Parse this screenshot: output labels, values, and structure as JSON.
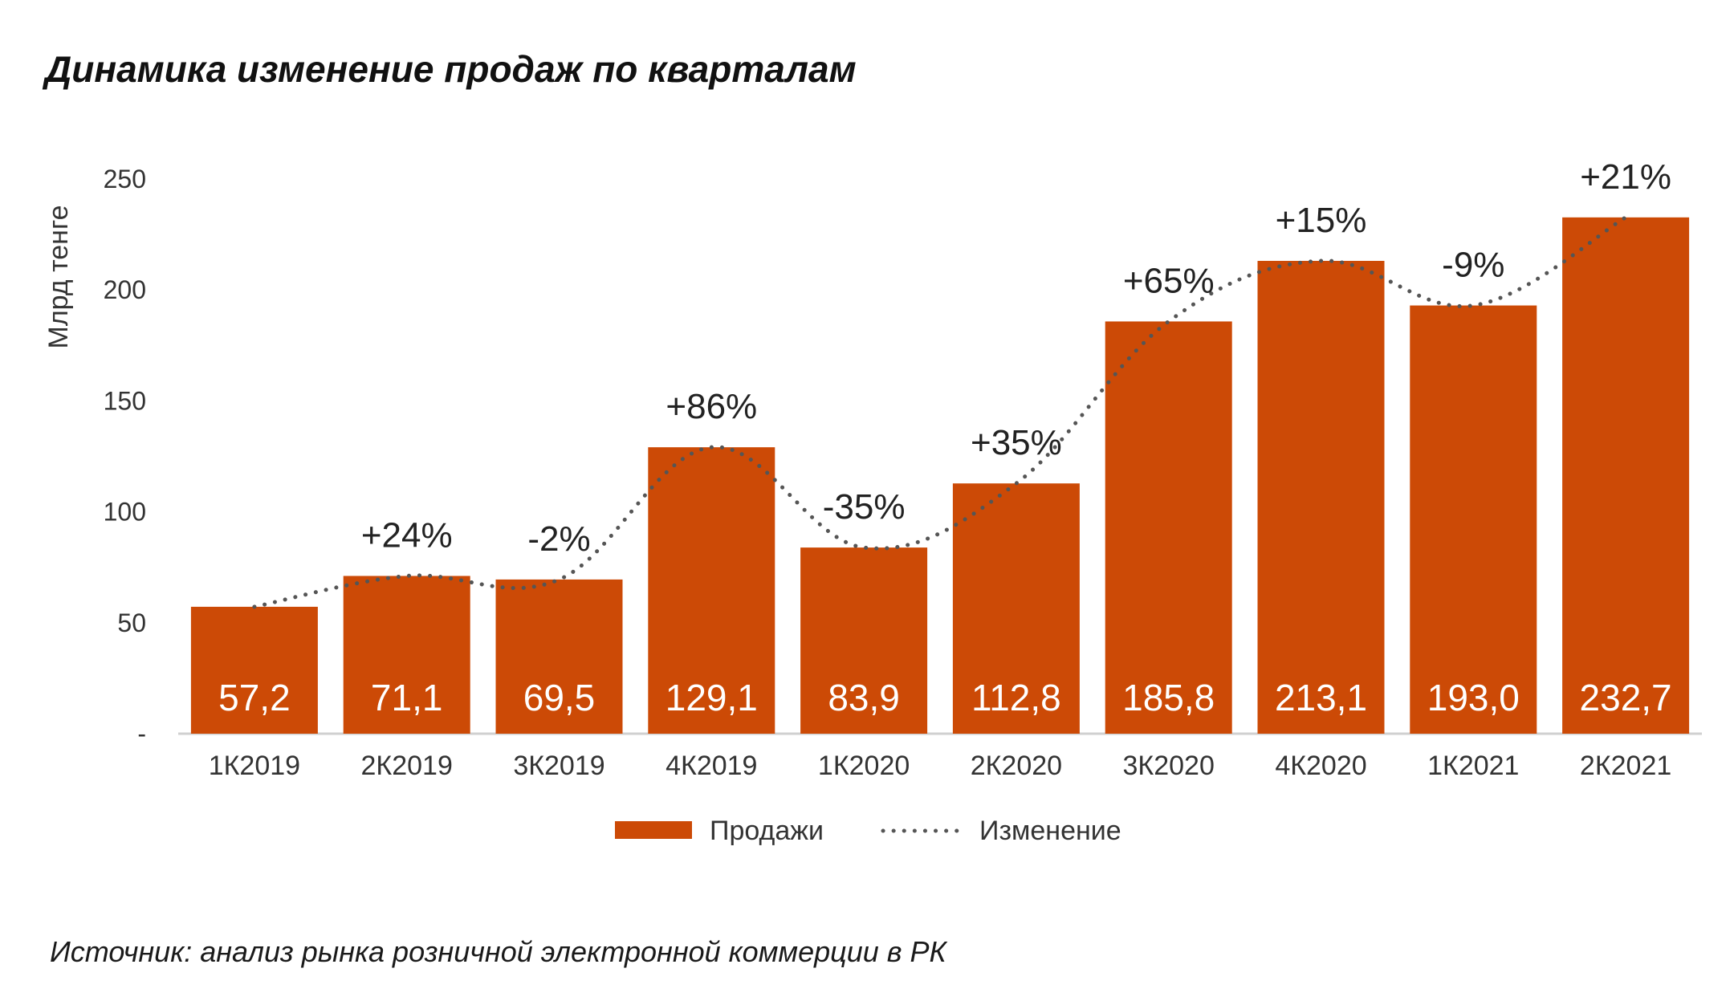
{
  "colors": {
    "bar": "#cc4a06",
    "trend": "#555555",
    "axis": "#d0d0d0"
  },
  "chart_data": {
    "type": "bar",
    "title": "Динамика изменение продаж по кварталам",
    "ylabel": "Млрд тенге",
    "ylim": [
      0,
      250
    ],
    "yticks": [
      {
        "value": 0,
        "label": "-"
      },
      {
        "value": 50,
        "label": "50"
      },
      {
        "value": 100,
        "label": "100"
      },
      {
        "value": 150,
        "label": "150"
      },
      {
        "value": 200,
        "label": "200"
      },
      {
        "value": 250,
        "label": "250"
      }
    ],
    "categories": [
      "1К2019",
      "2К2019",
      "3К2019",
      "4К2019",
      "1К2020",
      "2К2020",
      "3К2020",
      "4К2020",
      "1К2021",
      "2К2021"
    ],
    "series": [
      {
        "name": "Продажи",
        "type": "bar",
        "values": [
          57.2,
          71.1,
          69.5,
          129.1,
          83.9,
          112.8,
          185.8,
          213.1,
          193.0,
          232.7
        ],
        "labels": [
          "57,2",
          "71,1",
          "69,5",
          "129,1",
          "83,9",
          "112,8",
          "185,8",
          "213,1",
          "193,0",
          "232,7"
        ]
      },
      {
        "name": "Изменение",
        "type": "line",
        "style": "dotted",
        "labels": [
          "",
          "+24%",
          "-2%",
          "+86%",
          "-35%",
          "+35%",
          "+65%",
          "+15%",
          "-9%",
          "+21%"
        ]
      }
    ],
    "legend": {
      "position": "bottom",
      "entries": [
        "Продажи",
        "Изменение"
      ]
    },
    "source": "Источник: анализ рынка розничной электронной коммерции в РК"
  }
}
